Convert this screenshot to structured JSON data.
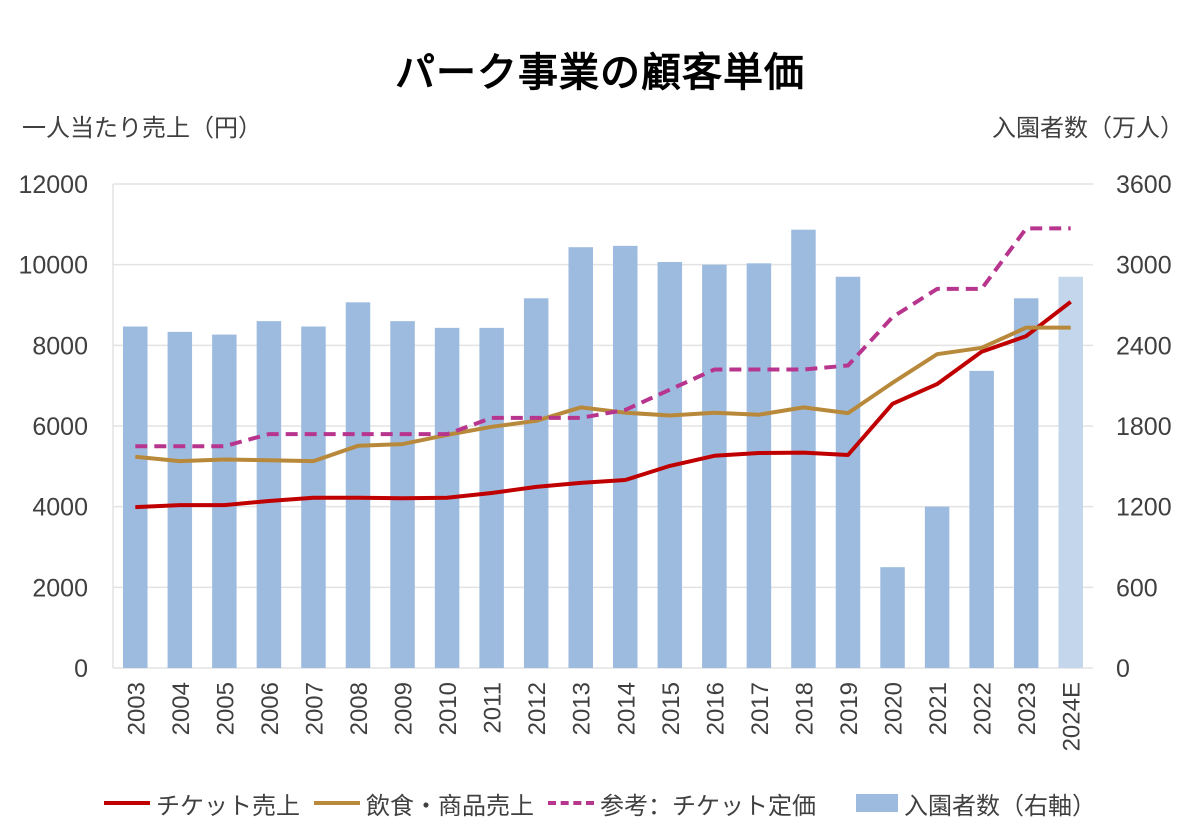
{
  "chart_data": {
    "type": "bar+line",
    "title": "パーク事業の顧客単価",
    "ylabel_left": "一人当たり売上（円）",
    "ylabel_right": "入園者数（万人）",
    "xlabel": "",
    "ylim_left": [
      0,
      12000
    ],
    "ylim_right": [
      0,
      3600
    ],
    "yticks_left": [
      "0",
      "2000",
      "4000",
      "6000",
      "8000",
      "10000",
      "12000"
    ],
    "yticks_right": [
      "0",
      "600",
      "1200",
      "1800",
      "2400",
      "3000",
      "3600"
    ],
    "grid": true,
    "legend_position": "bottom",
    "categories": [
      "2003",
      "2004",
      "2005",
      "2006",
      "2007",
      "2008",
      "2009",
      "2010",
      "2011",
      "2012",
      "2013",
      "2014",
      "2015",
      "2016",
      "2017",
      "2018",
      "2019",
      "2020",
      "2021",
      "2022",
      "2023",
      "2024E"
    ],
    "bars": {
      "name": "入園者数（右軸）",
      "axis": "right",
      "color": "#9dbbdf",
      "estimate_color": "#c4d6ec",
      "values": [
        2540,
        2500,
        2480,
        2580,
        2540,
        2720,
        2580,
        2530,
        2530,
        2750,
        3130,
        3140,
        3020,
        3000,
        3010,
        3260,
        2910,
        750,
        1200,
        2210,
        2750,
        2910
      ]
    },
    "series": [
      {
        "name": "チケット売上",
        "axis": "left",
        "style": "solid",
        "color": "#c00000",
        "values": [
          3990,
          4040,
          4040,
          4140,
          4220,
          4220,
          4210,
          4220,
          4340,
          4490,
          4590,
          4660,
          5010,
          5260,
          5330,
          5340,
          5280,
          6550,
          7040,
          7840,
          8230,
          9080
        ]
      },
      {
        "name": "飲食・商品売上",
        "axis": "left",
        "style": "solid",
        "color": "#b8893a",
        "values": [
          5240,
          5130,
          5170,
          5150,
          5130,
          5510,
          5550,
          5780,
          5980,
          6130,
          6460,
          6330,
          6260,
          6330,
          6280,
          6460,
          6320,
          7070,
          7780,
          7940,
          8440,
          8440
        ]
      },
      {
        "name": "参考：チケット定価",
        "axis": "left",
        "style": "dashed",
        "color": "#b8358e",
        "values": [
          5500,
          5500,
          5500,
          5800,
          5800,
          5800,
          5800,
          5800,
          6200,
          6200,
          6200,
          6400,
          6900,
          7400,
          7400,
          7400,
          7500,
          8700,
          9400,
          9400,
          10900,
          10900
        ]
      }
    ]
  }
}
